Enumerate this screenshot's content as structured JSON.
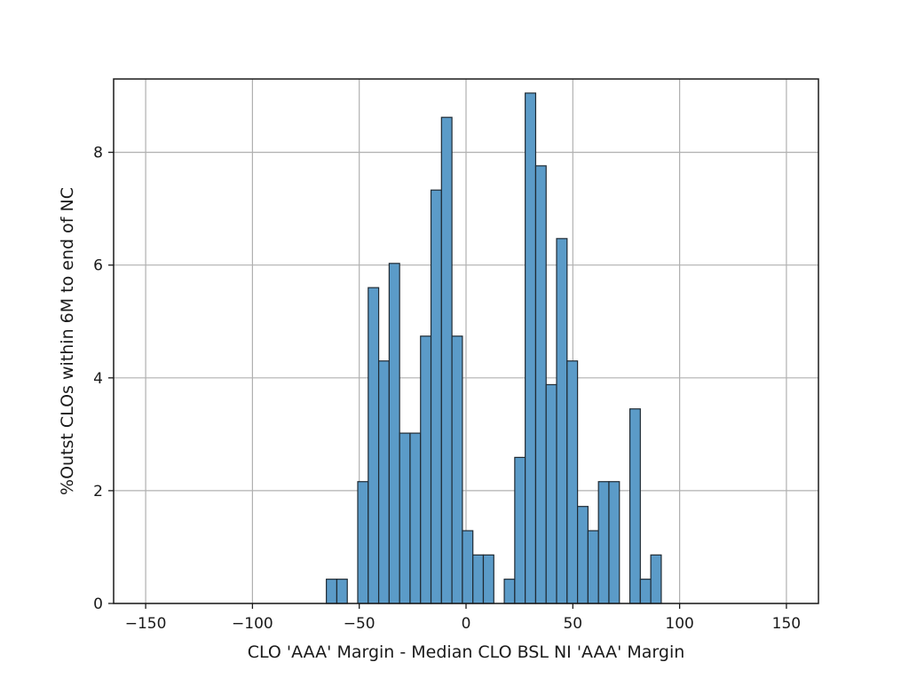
{
  "chart_data": {
    "type": "bar",
    "subtype": "histogram",
    "xlabel": "CLO 'AAA' Margin - Median CLO BSL NI 'AAA' Margin",
    "ylabel": "%Outst CLOs within 6M to end of NC",
    "xlim": [
      -165,
      165
    ],
    "ylim": [
      0,
      9.3
    ],
    "xticks": [
      -150,
      -100,
      -50,
      0,
      50,
      100,
      150
    ],
    "xtick_labels": [
      "−150",
      "−100",
      "−50",
      "0",
      "50",
      "100",
      "150"
    ],
    "yticks": [
      0,
      2,
      4,
      6,
      8
    ],
    "ytick_labels": [
      "0",
      "2",
      "4",
      "6",
      "8"
    ],
    "grid": true,
    "bar_color": "#5b9bc8",
    "edge_color": "#1f2a33",
    "bin_width": 4.9,
    "bins": [
      {
        "x0": -65.4,
        "value": 0.43
      },
      {
        "x0": -60.5,
        "value": 0.43
      },
      {
        "x0": -50.7,
        "value": 2.16
      },
      {
        "x0": -45.8,
        "value": 5.6
      },
      {
        "x0": -40.9,
        "value": 4.3
      },
      {
        "x0": -36.0,
        "value": 6.03
      },
      {
        "x0": -31.1,
        "value": 3.02
      },
      {
        "x0": -26.2,
        "value": 3.02
      },
      {
        "x0": -21.3,
        "value": 4.74
      },
      {
        "x0": -16.4,
        "value": 7.33
      },
      {
        "x0": -11.5,
        "value": 8.62
      },
      {
        "x0": -6.6,
        "value": 4.74
      },
      {
        "x0": -1.7,
        "value": 1.29
      },
      {
        "x0": 3.2,
        "value": 0.86
      },
      {
        "x0": 8.1,
        "value": 0.86
      },
      {
        "x0": 17.9,
        "value": 0.43
      },
      {
        "x0": 22.8,
        "value": 2.59
      },
      {
        "x0": 27.7,
        "value": 9.05
      },
      {
        "x0": 32.6,
        "value": 7.76
      },
      {
        "x0": 37.5,
        "value": 3.88
      },
      {
        "x0": 42.4,
        "value": 6.47
      },
      {
        "x0": 47.3,
        "value": 4.3
      },
      {
        "x0": 52.2,
        "value": 1.72
      },
      {
        "x0": 57.1,
        "value": 1.29
      },
      {
        "x0": 62.0,
        "value": 2.16
      },
      {
        "x0": 66.9,
        "value": 2.16
      },
      {
        "x0": 76.7,
        "value": 3.45
      },
      {
        "x0": 81.6,
        "value": 0.43
      },
      {
        "x0": 86.5,
        "value": 0.86
      }
    ]
  }
}
